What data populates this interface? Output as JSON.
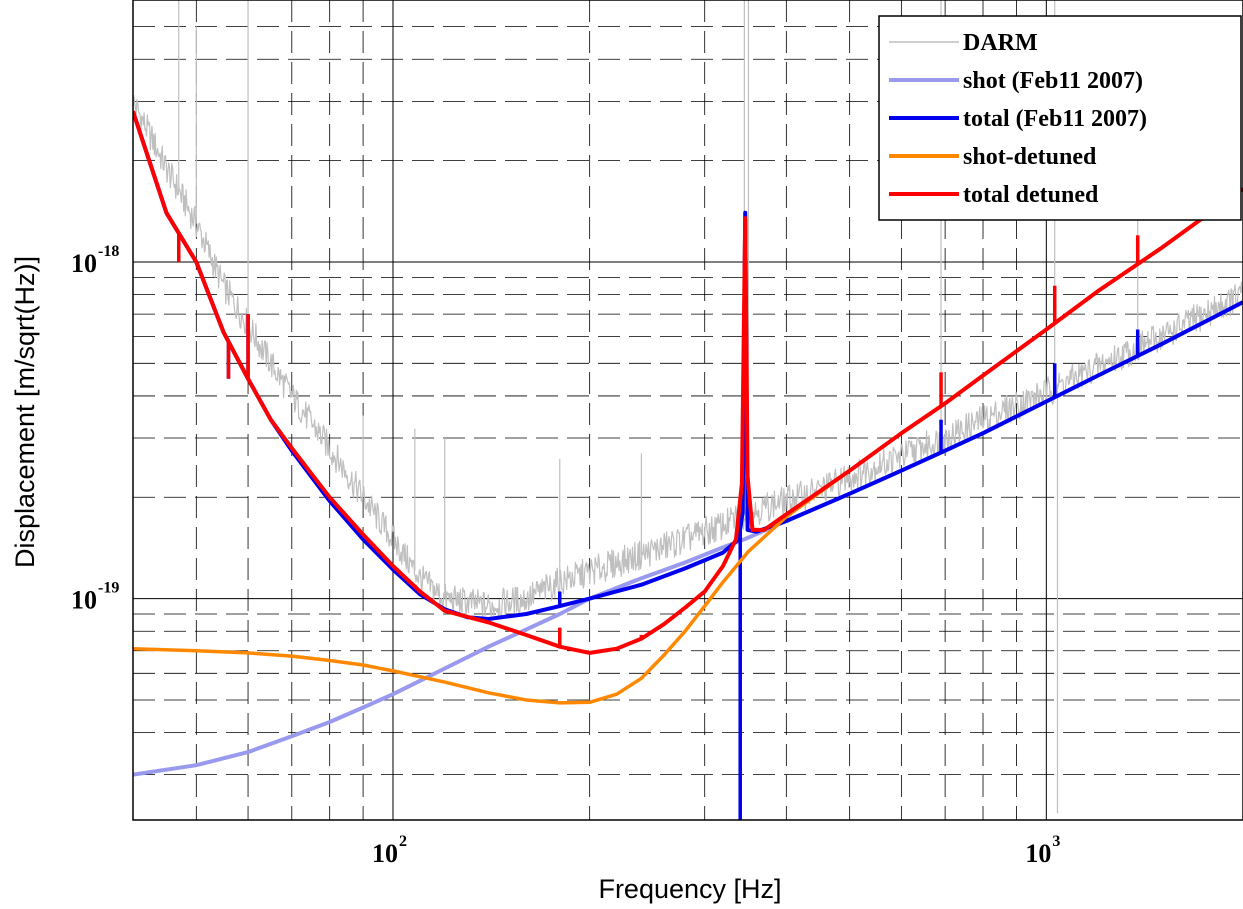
{
  "chart_data": {
    "type": "line",
    "title": "",
    "xlabel": "Frequency [Hz]",
    "ylabel": "Displacement [m/sqrt(Hz)]",
    "xscale": "log",
    "yscale": "log",
    "xlim": [
      40,
      2000
    ],
    "ylim": [
      2.2e-20,
      6e-18
    ],
    "grid": true,
    "legend_position": "top-right",
    "x_ticks": [
      {
        "value": 100,
        "base": "10",
        "exp": "2"
      },
      {
        "value": 1000,
        "base": "10",
        "exp": "3"
      }
    ],
    "y_ticks": [
      {
        "value": 1e-19,
        "base": "10",
        "exp": "-19"
      },
      {
        "value": 1e-18,
        "base": "10",
        "exp": "-18"
      }
    ],
    "series": [
      {
        "name": "DARM",
        "color": "#bfbfbf",
        "style": "noisy",
        "points": [
          [
            40,
            3e-18
          ],
          [
            45,
            1.9e-18
          ],
          [
            50,
            1.3e-18
          ],
          [
            55,
            8.5e-19
          ],
          [
            60,
            6.5e-19
          ],
          [
            65,
            5e-19
          ],
          [
            70,
            4e-19
          ],
          [
            80,
            2.8e-19
          ],
          [
            90,
            2e-19
          ],
          [
            100,
            1.5e-19
          ],
          [
            110,
            1.15e-19
          ],
          [
            120,
            1e-19
          ],
          [
            140,
            9.5e-20
          ],
          [
            160,
            1e-19
          ],
          [
            180,
            1.12e-19
          ],
          [
            200,
            1.2e-19
          ],
          [
            240,
            1.35e-19
          ],
          [
            280,
            1.5e-19
          ],
          [
            320,
            1.65e-19
          ],
          [
            340,
            1.75e-19
          ],
          [
            380,
            1.9e-19
          ],
          [
            450,
            2.1e-19
          ],
          [
            500,
            2.3e-19
          ],
          [
            600,
            2.65e-19
          ],
          [
            700,
            3e-19
          ],
          [
            800,
            3.4e-19
          ],
          [
            1000,
            4.1e-19
          ],
          [
            1200,
            4.9e-19
          ],
          [
            1500,
            6e-19
          ],
          [
            2000,
            8e-19
          ]
        ],
        "spikes": [
          [
            47,
            6e-18
          ],
          [
            50,
            5e-18
          ],
          [
            60,
            6e-18
          ],
          [
            90,
            3.5e-19
          ],
          [
            108,
            3.2e-19
          ],
          [
            120,
            3e-19
          ],
          [
            180,
            2.6e-19
          ],
          [
            240,
            2.7e-19
          ],
          [
            345,
            6e-18
          ],
          [
            350,
            6e-18
          ],
          [
            690,
            6e-18
          ],
          [
            1030,
            6e-18
          ],
          [
            1380,
            1.6e-18
          ],
          [
            1040,
            2.3e-20
          ]
        ]
      },
      {
        "name": "shot (Feb11 2007)",
        "color": "#9999ee",
        "points": [
          [
            40,
            3e-20
          ],
          [
            50,
            3.2e-20
          ],
          [
            60,
            3.5e-20
          ],
          [
            70,
            3.9e-20
          ],
          [
            80,
            4.3e-20
          ],
          [
            90,
            4.75e-20
          ],
          [
            100,
            5.2e-20
          ],
          [
            110,
            5.7e-20
          ],
          [
            120,
            6.2e-20
          ],
          [
            140,
            7.2e-20
          ],
          [
            160,
            8.1e-20
          ],
          [
            180,
            9e-20
          ],
          [
            200,
            1e-19
          ],
          [
            240,
            1.15e-19
          ],
          [
            280,
            1.28e-19
          ],
          [
            320,
            1.42e-19
          ],
          [
            345,
            1.5e-19
          ],
          [
            400,
            1.7e-19
          ],
          [
            500,
            2.05e-19
          ],
          [
            600,
            2.4e-19
          ],
          [
            700,
            2.75e-19
          ],
          [
            800,
            3.1e-19
          ],
          [
            1000,
            3.85e-19
          ],
          [
            1200,
            4.6e-19
          ],
          [
            1500,
            5.7e-19
          ],
          [
            2000,
            7.6e-19
          ]
        ]
      },
      {
        "name": "total (Feb11 2007)",
        "color": "#0000ee",
        "points": [
          [
            40,
            2.8e-18
          ],
          [
            45,
            1.4e-18
          ],
          [
            50,
            1e-18
          ],
          [
            55,
            6.2e-19
          ],
          [
            60,
            4.5e-19
          ],
          [
            65,
            3.4e-19
          ],
          [
            70,
            2.75e-19
          ],
          [
            75,
            2.3e-19
          ],
          [
            80,
            1.95e-19
          ],
          [
            90,
            1.5e-19
          ],
          [
            100,
            1.22e-19
          ],
          [
            110,
            1.03e-19
          ],
          [
            120,
            9.3e-20
          ],
          [
            130,
            8.8e-20
          ],
          [
            140,
            8.7e-20
          ],
          [
            160,
            9e-20
          ],
          [
            180,
            9.5e-20
          ],
          [
            200,
            1e-19
          ],
          [
            240,
            1.1e-19
          ],
          [
            280,
            1.23e-19
          ],
          [
            320,
            1.37e-19
          ],
          [
            338,
            1.5e-19
          ],
          [
            343,
            1.8e-19
          ],
          [
            346,
            1.4e-18
          ],
          [
            349,
            1.6e-19
          ],
          [
            360,
            1.58e-19
          ],
          [
            400,
            1.7e-19
          ],
          [
            500,
            2.05e-19
          ],
          [
            600,
            2.4e-19
          ],
          [
            700,
            2.75e-19
          ],
          [
            800,
            3.1e-19
          ],
          [
            1000,
            3.85e-19
          ],
          [
            1200,
            4.6e-19
          ],
          [
            1500,
            5.7e-19
          ],
          [
            2000,
            7.6e-19
          ]
        ],
        "spikes": [
          [
            47,
            1e-18
          ],
          [
            50,
            1e-18
          ],
          [
            56,
            4.5e-19
          ],
          [
            60,
            7e-19
          ],
          [
            180,
            1.05e-19
          ],
          [
            340,
            2.2e-20
          ],
          [
            690,
            3.4e-19
          ],
          [
            1030,
            5e-19
          ],
          [
            1380,
            6.3e-19
          ]
        ]
      },
      {
        "name": "shot-detuned",
        "color": "#ff8800",
        "points": [
          [
            40,
            7.1e-20
          ],
          [
            50,
            7e-20
          ],
          [
            60,
            6.9e-20
          ],
          [
            70,
            6.75e-20
          ],
          [
            80,
            6.55e-20
          ],
          [
            90,
            6.35e-20
          ],
          [
            100,
            6.1e-20
          ],
          [
            120,
            5.65e-20
          ],
          [
            140,
            5.25e-20
          ],
          [
            160,
            5e-20
          ],
          [
            180,
            4.9e-20
          ],
          [
            200,
            4.92e-20
          ],
          [
            220,
            5.2e-20
          ],
          [
            240,
            5.8e-20
          ],
          [
            260,
            6.8e-20
          ],
          [
            280,
            8e-20
          ],
          [
            300,
            9.5e-20
          ],
          [
            320,
            1.12e-19
          ],
          [
            350,
            1.38e-19
          ],
          [
            400,
            1.75e-19
          ],
          [
            500,
            2.4e-19
          ],
          [
            600,
            3.1e-19
          ],
          [
            700,
            3.8e-19
          ],
          [
            800,
            4.6e-19
          ],
          [
            1000,
            6.3e-19
          ],
          [
            1200,
            8.2e-19
          ],
          [
            1500,
            1.1e-18
          ],
          [
            2000,
            1.65e-18
          ]
        ]
      },
      {
        "name": "total detuned",
        "color": "#ff0000",
        "points": [
          [
            40,
            2.8e-18
          ],
          [
            45,
            1.4e-18
          ],
          [
            50,
            1e-18
          ],
          [
            55,
            6.2e-19
          ],
          [
            60,
            4.5e-19
          ],
          [
            65,
            3.4e-19
          ],
          [
            70,
            2.8e-19
          ],
          [
            75,
            2.35e-19
          ],
          [
            80,
            2e-19
          ],
          [
            90,
            1.55e-19
          ],
          [
            100,
            1.25e-19
          ],
          [
            110,
            1.05e-19
          ],
          [
            120,
            9.2e-20
          ],
          [
            140,
            8.5e-20
          ],
          [
            160,
            7.8e-20
          ],
          [
            180,
            7.2e-20
          ],
          [
            200,
            6.9e-20
          ],
          [
            220,
            7.1e-20
          ],
          [
            240,
            7.6e-20
          ],
          [
            260,
            8.4e-20
          ],
          [
            280,
            9.4e-20
          ],
          [
            300,
            1.05e-19
          ],
          [
            320,
            1.25e-19
          ],
          [
            335,
            1.5e-19
          ],
          [
            342,
            2.2e-19
          ],
          [
            346,
            1.35e-18
          ],
          [
            349,
            2.3e-19
          ],
          [
            355,
            1.6e-19
          ],
          [
            370,
            1.6e-19
          ],
          [
            400,
            1.78e-19
          ],
          [
            500,
            2.4e-19
          ],
          [
            600,
            3.1e-19
          ],
          [
            700,
            3.8e-19
          ],
          [
            800,
            4.6e-19
          ],
          [
            1000,
            6.3e-19
          ],
          [
            1200,
            8.2e-19
          ],
          [
            1500,
            1.1e-18
          ],
          [
            2000,
            1.65e-18
          ]
        ],
        "spikes": [
          [
            47,
            1e-18
          ],
          [
            50,
            1e-18
          ],
          [
            56,
            4.5e-19
          ],
          [
            60,
            7e-19
          ],
          [
            108,
            1.1e-19
          ],
          [
            180,
            8.2e-20
          ],
          [
            240,
            7.8e-20
          ],
          [
            690,
            4.7e-19
          ],
          [
            1030,
            8.5e-19
          ],
          [
            1380,
            1.2e-18
          ]
        ]
      }
    ]
  }
}
